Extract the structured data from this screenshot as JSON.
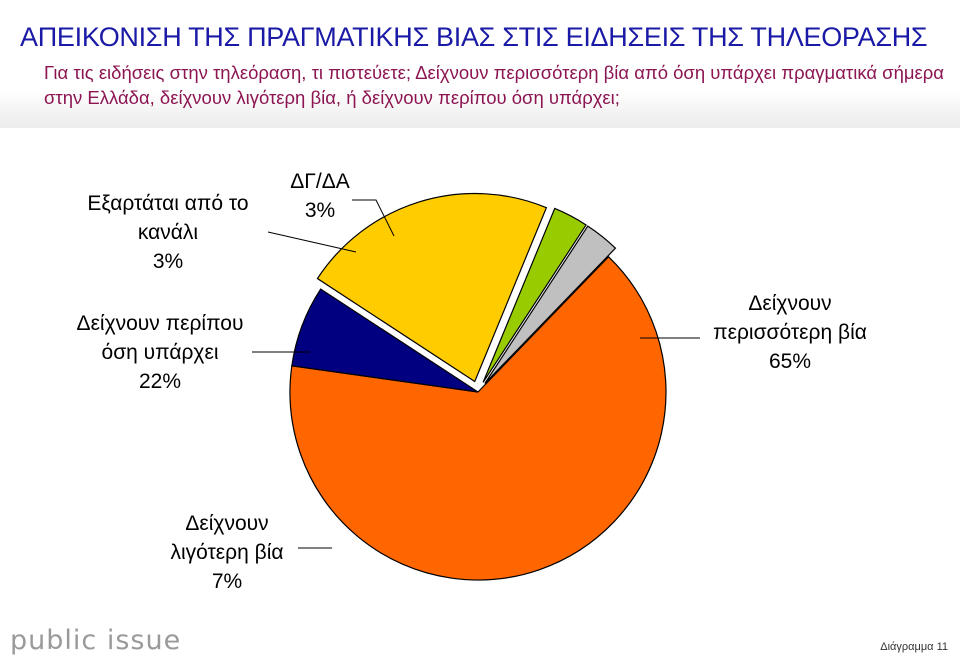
{
  "header": {
    "title": "ΑΠΕΙΚΟΝΙΣΗ ΤΗΣ ΠΡΑΓΜΑΤΙΚΗΣ ΒΙΑΣ ΣΤΙΣ ΕΙΔΗΣΕΙΣ ΤΗΣ ΤΗΛΕΟΡΑΣΗΣ",
    "subtitle": "Για τις ειδήσεις στην τηλεόραση, τι πιστεύετε; Δείχνουν περισσότερη βία από όση υπάρχει πραγματικά σήμερα στην Ελλάδα, δείχνουν λιγότερη βία, ή δείχνουν περίπου όση υπάρχει;"
  },
  "chart_data": {
    "type": "pie",
    "slices": [
      {
        "label_lines": [
          "Δείχνουν",
          "περισσότερη βία"
        ],
        "value_text": "65%",
        "value": 65,
        "color": "#ff6600"
      },
      {
        "label_lines": [
          "Δείχνουν",
          "λιγότερη βία"
        ],
        "value_text": "7%",
        "value": 7,
        "color": "#000080"
      },
      {
        "label_lines": [
          "Δείχνουν περίπου",
          "όση υπάρχει"
        ],
        "value_text": "22%",
        "value": 22,
        "color": "#ffcc00"
      },
      {
        "label_lines": [
          "Εξαρτάται από το",
          "κανάλι"
        ],
        "value_text": "3%",
        "value": 3,
        "color": "#99cc00"
      },
      {
        "label_lines": [
          "ΔΓ/ΔΑ"
        ],
        "value_text": "3%",
        "value": 3,
        "color": "#c0c0c0"
      }
    ]
  },
  "footer": {
    "logo": "public issue",
    "figure_number": "Διάγραμμα 11"
  }
}
